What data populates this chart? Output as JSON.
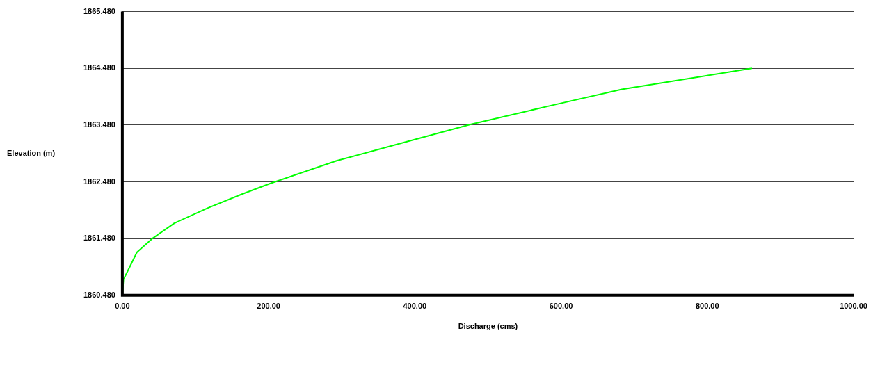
{
  "chart_data": {
    "type": "line",
    "xlabel": "Discharge (cms)",
    "ylabel": "Elevation (m)",
    "xlim": [
      0,
      1000
    ],
    "xticks": [
      {
        "value": 0,
        "label": "0.00"
      },
      {
        "value": 200,
        "label": "200.00"
      },
      {
        "value": 400,
        "label": "400.00"
      },
      {
        "value": 600,
        "label": "600.00"
      },
      {
        "value": 800,
        "label": "800.00"
      },
      {
        "value": 1000,
        "label": "1000.00"
      }
    ],
    "ylim": [
      1860.48,
      1865.48
    ],
    "yticks": [
      {
        "value": 1860.48,
        "label": "1860.480"
      },
      {
        "value": 1861.48,
        "label": "1861.480"
      },
      {
        "value": 1862.48,
        "label": "1862.480"
      },
      {
        "value": 1863.48,
        "label": "1863.480"
      },
      {
        "value": 1864.48,
        "label": "1864.480"
      },
      {
        "value": 1865.48,
        "label": "1865.480"
      }
    ],
    "grid": true,
    "legend": false,
    "marker": "none",
    "line_style": "solid",
    "series": [
      {
        "color": "#00ff00",
        "x": [
          0,
          1.6,
          20,
          42,
          71,
          117,
          163,
          202,
          293,
          390,
          476,
          585,
          683,
          861
        ],
        "values": [
          1860.48,
          1860.76,
          1861.24,
          1861.49,
          1861.75,
          1862.02,
          1862.26,
          1862.45,
          1862.85,
          1863.19,
          1863.49,
          1863.82,
          1864.11,
          1864.48
        ]
      }
    ]
  }
}
